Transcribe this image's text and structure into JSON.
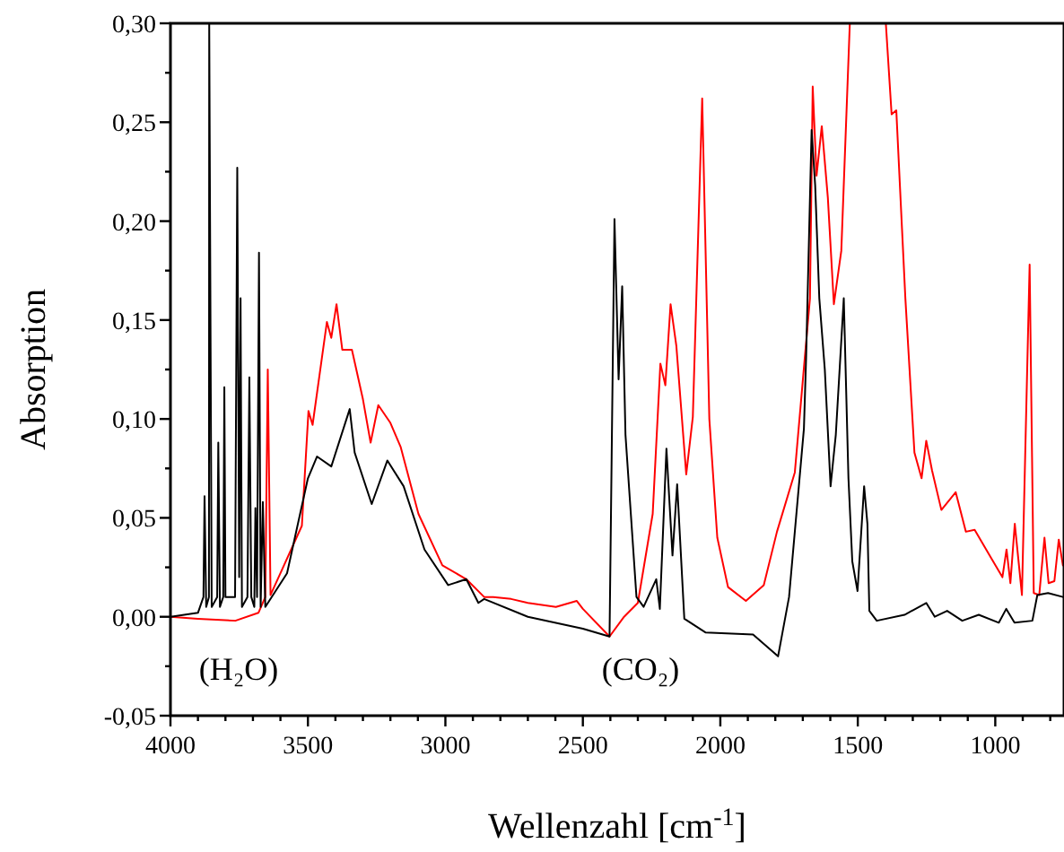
{
  "chart_data": {
    "type": "line",
    "xlabel": "Wellenzahl [cm$^{-1}$]",
    "ylabel": "Absorption",
    "xlim": [
      4000,
      750
    ],
    "ylim": [
      -0.05,
      0.3
    ],
    "xticks": [
      4000,
      {
        "value": 3900,
        "label": null
      },
      {
        "value": 3800,
        "label": null
      },
      {
        "value": 3700,
        "label": null
      },
      {
        "value": 3600,
        "label": null
      },
      3500,
      {
        "value": 3400,
        "label": null
      },
      {
        "value": 3300,
        "label": null
      },
      {
        "value": 3200,
        "label": null
      },
      {
        "value": 3100,
        "label": null
      },
      3000,
      {
        "value": 2900,
        "label": null
      },
      {
        "value": 2800,
        "label": null
      },
      {
        "value": 2700,
        "label": null
      },
      {
        "value": 2600,
        "label": null
      },
      2500,
      {
        "value": 2400,
        "label": null
      },
      {
        "value": 2300,
        "label": null
      },
      {
        "value": 2200,
        "label": null
      },
      {
        "value": 2100,
        "label": null
      },
      2000,
      {
        "value": 1900,
        "label": null
      },
      {
        "value": 1800,
        "label": null
      },
      {
        "value": 1700,
        "label": null
      },
      {
        "value": 1600,
        "label": null
      },
      1500,
      {
        "value": 1400,
        "label": null
      },
      {
        "value": 1300,
        "label": null
      },
      {
        "value": 1200,
        "label": null
      },
      {
        "value": 1100,
        "label": null
      },
      1000,
      {
        "value": 900,
        "label": null
      },
      {
        "value": 800,
        "label": null
      }
    ],
    "yticks": [
      {
        "value": -0.05,
        "label": "-0,05"
      },
      {
        "value": -0.025,
        "label": null
      },
      {
        "value": 0,
        "label": "0,00"
      },
      {
        "value": 0.025,
        "label": null
      },
      {
        "value": 0.05,
        "label": "0,05"
      },
      {
        "value": 0.075,
        "label": null
      },
      {
        "value": 0.1,
        "label": "0,10"
      },
      {
        "value": 0.125,
        "label": null
      },
      {
        "value": 0.15,
        "label": "0,15"
      },
      {
        "value": 0.175,
        "label": null
      },
      {
        "value": 0.2,
        "label": "0,20"
      },
      {
        "value": 0.225,
        "label": null
      },
      {
        "value": 0.25,
        "label": "0,25"
      },
      {
        "value": 0.275,
        "label": null
      },
      {
        "value": 0.3,
        "label": "0,30"
      }
    ],
    "grid": false,
    "marker": "none",
    "line_style": "solid",
    "annotations": [
      "(H₂O)",
      "(CO₂)"
    ],
    "series": [
      {
        "color": "#ff0000",
        "x": [
          4000,
          3900,
          3764,
          3680,
          3655,
          3646,
          3636,
          3600,
          3522,
          3498,
          3483,
          3450,
          3431,
          3415,
          3396,
          3375,
          3340,
          3300,
          3272,
          3244,
          3200,
          3163,
          3098,
          3011,
          2924,
          2859,
          2826,
          2761,
          2700,
          2598,
          2522,
          2500,
          2403,
          2350,
          2300,
          2246,
          2218,
          2200,
          2181,
          2160,
          2124,
          2100,
          2066,
          2040,
          2011,
          1972,
          1907,
          1842,
          1794,
          1729,
          1674,
          1664,
          1650,
          1631,
          1609,
          1587,
          1560,
          1529,
          1460,
          1398,
          1377,
          1360,
          1327,
          1294,
          1268,
          1251,
          1230,
          1196,
          1144,
          1107,
          1075,
          1012,
          974,
          959,
          945,
          929,
          903,
          875,
          860,
          840,
          821,
          806,
          785,
          769,
          754
        ],
        "values": [
          0.0,
          -0.001,
          -0.002,
          0.002,
          0.01,
          0.125,
          0.011,
          0.022,
          0.046,
          0.104,
          0.097,
          0.13,
          0.149,
          0.141,
          0.158,
          0.135,
          0.135,
          0.11,
          0.088,
          0.107,
          0.098,
          0.086,
          0.052,
          0.026,
          0.019,
          0.01,
          0.01,
          0.009,
          0.007,
          0.005,
          0.008,
          0.004,
          -0.01,
          0.0,
          0.007,
          0.052,
          0.128,
          0.117,
          0.158,
          0.137,
          0.072,
          0.101,
          0.262,
          0.1,
          0.04,
          0.015,
          0.008,
          0.016,
          0.043,
          0.073,
          0.161,
          0.268,
          0.223,
          0.248,
          0.212,
          0.158,
          0.185,
          0.3,
          null,
          0.3,
          0.254,
          0.256,
          0.161,
          0.083,
          0.07,
          0.089,
          0.074,
          0.054,
          0.063,
          0.043,
          0.044,
          0.029,
          0.02,
          0.034,
          0.017,
          0.047,
          0.011,
          0.178,
          0.012,
          0.011,
          0.04,
          0.017,
          0.018,
          0.039,
          0.026
        ]
      },
      {
        "color": "#000000",
        "x": [
          4000,
          3900,
          3880,
          3876,
          3870,
          3860,
          3859,
          3850,
          3830,
          3826,
          3820,
          3808,
          3804,
          3800,
          3765,
          3757,
          3750,
          3745,
          3740,
          3720,
          3713,
          3706,
          3695,
          3691,
          3685,
          3678,
          3672,
          3664,
          3655,
          3576,
          3500,
          3467,
          3415,
          3348,
          3330,
          3268,
          3211,
          3152,
          3076,
          2990,
          2924,
          2880,
          2859,
          2700,
          2500,
          2403,
          2385,
          2370,
          2357,
          2345,
          2305,
          2279,
          2233,
          2220,
          2196,
          2174,
          2157,
          2131,
          2053,
          1881,
          1790,
          1750,
          1696,
          1688,
          1668,
          1655,
          1640,
          1620,
          1599,
          1580,
          1551,
          1534,
          1520,
          1501,
          1477,
          1465,
          1458,
          1431,
          1330,
          1251,
          1220,
          1175,
          1120,
          1060,
          987,
          960,
          930,
          865,
          847,
          808,
          754
        ],
        "values": [
          0.0,
          0.002,
          0.01,
          0.061,
          0.005,
          0.01,
          0.3,
          0.005,
          0.01,
          0.088,
          0.005,
          0.01,
          0.116,
          0.01,
          0.01,
          0.227,
          0.02,
          0.161,
          0.005,
          0.01,
          0.121,
          0.01,
          0.005,
          0.055,
          0.01,
          0.184,
          0.005,
          0.058,
          0.005,
          0.022,
          0.07,
          0.081,
          0.076,
          0.105,
          0.083,
          0.057,
          0.079,
          0.066,
          0.034,
          0.016,
          0.019,
          0.007,
          0.009,
          0.0,
          -0.006,
          -0.01,
          0.201,
          0.12,
          0.167,
          0.092,
          0.01,
          0.005,
          0.019,
          0.004,
          0.085,
          0.031,
          0.067,
          -0.001,
          -0.008,
          -0.009,
          -0.02,
          0.01,
          0.095,
          0.131,
          0.246,
          0.218,
          0.161,
          0.125,
          0.066,
          0.092,
          0.161,
          0.07,
          0.028,
          0.013,
          0.066,
          0.047,
          0.003,
          -0.002,
          0.001,
          0.007,
          0.0,
          0.003,
          -0.002,
          0.001,
          -0.003,
          0.004,
          -0.003,
          -0.002,
          0.011,
          0.012,
          0.01
        ]
      }
    ]
  }
}
